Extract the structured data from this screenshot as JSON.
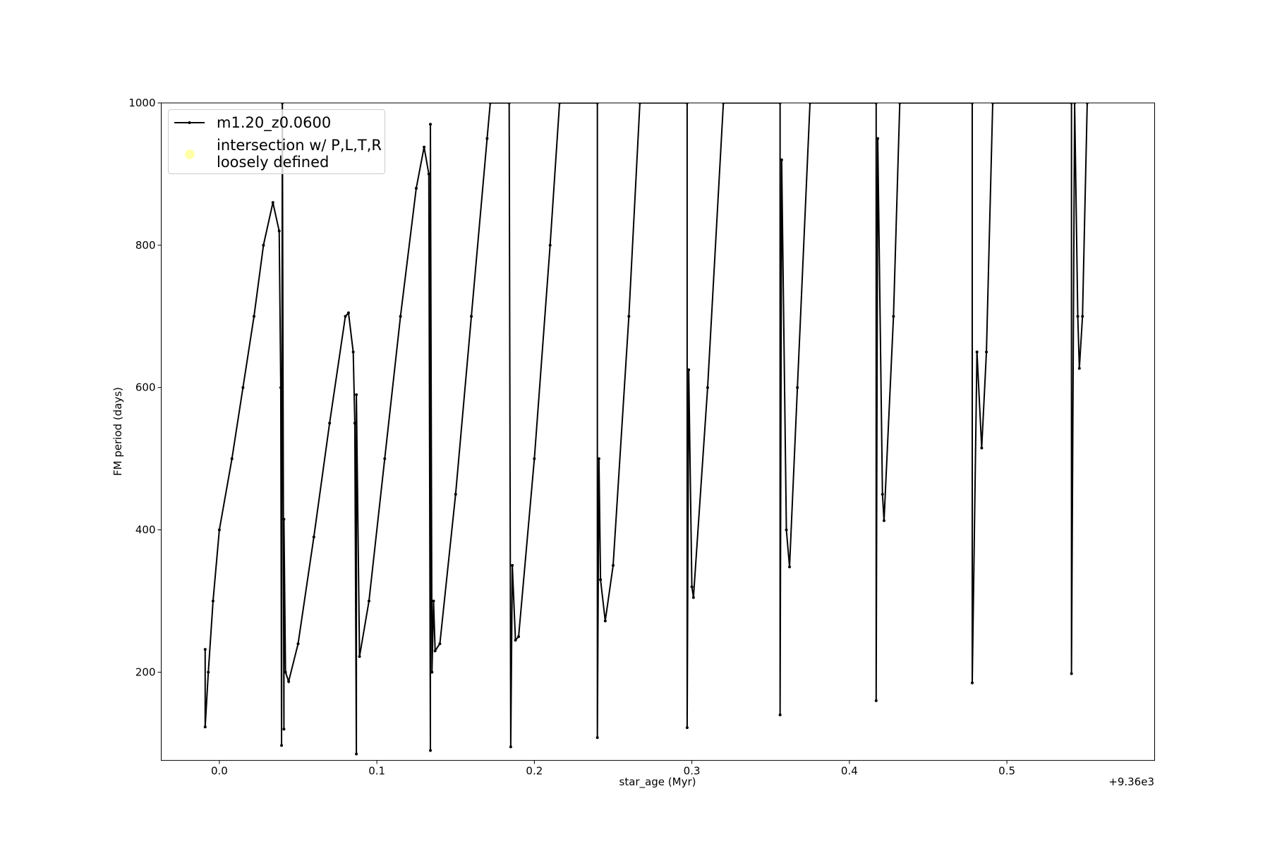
{
  "chart_data": {
    "type": "line",
    "xlabel": "star_age (Myr)",
    "ylabel": "FM period (days)",
    "x_offset_label": "+9.36e3",
    "xlim": [
      -0.0369,
      0.5938
    ],
    "ylim": [
      76,
      1000
    ],
    "xticks": [
      {
        "value": 0,
        "label": "0.0"
      },
      0.1,
      0.2,
      0.3,
      0.4,
      0.5
    ],
    "yticks": [
      200,
      400,
      600,
      800,
      1000
    ],
    "legend": "upper left",
    "series": [
      {
        "name": "m1.20_z0.0600",
        "color": "#000000",
        "x": [
          -0.009,
          -0.009,
          -0.007,
          -0.004,
          0.0,
          0.008,
          0.015,
          0.022,
          0.028,
          0.034,
          0.038,
          0.039,
          0.0395,
          0.04,
          0.041,
          0.041,
          0.042,
          0.044,
          0.05,
          0.06,
          0.07,
          0.08,
          0.082,
          0.085,
          0.086,
          0.087,
          0.087,
          0.089,
          0.095,
          0.105,
          0.115,
          0.125,
          0.13,
          0.133,
          0.134,
          0.134,
          0.135,
          0.136,
          0.137,
          0.14,
          0.15,
          0.16,
          0.17,
          0.172,
          0.184,
          0.185,
          0.186,
          0.188,
          0.19,
          0.2,
          0.21,
          0.216,
          0.24,
          0.24,
          0.241,
          0.242,
          0.245,
          0.25,
          0.26,
          0.267,
          0.297,
          0.297,
          0.298,
          0.3,
          0.301,
          0.31,
          0.32,
          0.356,
          0.356,
          0.357,
          0.36,
          0.362,
          0.367,
          0.375,
          0.417,
          0.417,
          0.418,
          0.421,
          0.422,
          0.428,
          0.432,
          0.478,
          0.478,
          0.481,
          0.484,
          0.487,
          0.491,
          0.541,
          0.541,
          0.543,
          0.545,
          0.546,
          0.548,
          0.551
        ],
        "values": [
          232,
          123,
          200,
          300,
          400,
          500,
          600,
          700,
          800,
          860,
          820,
          600,
          97,
          1000,
          120,
          415,
          200,
          187,
          240,
          390,
          550,
          700,
          705,
          650,
          550,
          85,
          590,
          222,
          300,
          500,
          700,
          880,
          938,
          900,
          90,
          970,
          200,
          300,
          230,
          240,
          450,
          700,
          950,
          1000,
          1000,
          95,
          350,
          245,
          250,
          500,
          800,
          1000,
          1000,
          108,
          500,
          330,
          272,
          350,
          700,
          1000,
          1000,
          122,
          625,
          320,
          305,
          600,
          1000,
          1000,
          140,
          920,
          400,
          348,
          600,
          1000,
          1000,
          160,
          950,
          450,
          413,
          700,
          1000,
          1000,
          185,
          650,
          515,
          650,
          1000,
          1000,
          198,
          1000,
          700,
          627,
          700,
          1000
        ]
      },
      {
        "name": "intersection w/ P,L,T,R\nloosely defined",
        "color": "#ffffaa",
        "x": [],
        "values": []
      }
    ]
  }
}
